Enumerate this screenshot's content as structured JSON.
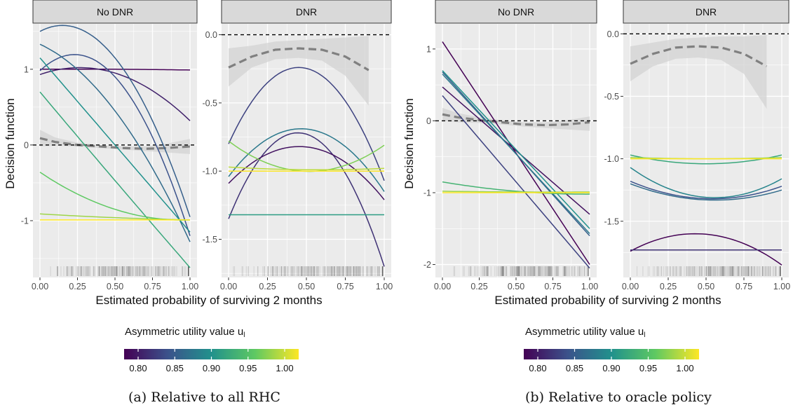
{
  "figure": {
    "captions": [
      "(a) Relative to all RHC",
      "(b) Relative to oracle policy"
    ],
    "legend": {
      "title": "Asymmetric utility value u",
      "title_sub": "l",
      "ticks": [
        "0.80",
        "0.85",
        "0.90",
        "0.95",
        "1.00"
      ],
      "range": [
        0.8,
        1.0
      ]
    },
    "xlabel": "Estimated probability of surviving 2 months",
    "ylabel": "Decision function"
  },
  "colors": {
    "panel_bg": "#ebebeb",
    "strip_bg": "#d9d9d9",
    "grid": "#ffffff",
    "ribbon": "#d3d3d3",
    "smooth": "#808080",
    "reference": "#000000",
    "viridis": [
      "#440154",
      "#3b528b",
      "#21918c",
      "#5ec962",
      "#fde725"
    ]
  },
  "chart_data": [
    {
      "type": "line",
      "figure": "a",
      "facet": "No DNR",
      "xlim": [
        0,
        1
      ],
      "ylim": [
        -1.75,
        1.6
      ],
      "xticks": [
        "0.00",
        "0.25",
        "0.50",
        "0.75",
        "1.00"
      ],
      "yticks": [
        {
          "v": 1,
          "label": "1"
        },
        {
          "v": 0,
          "label": "0"
        },
        {
          "v": -1,
          "label": "-1"
        }
      ],
      "reference_y": 0,
      "smooth": {
        "x": [
          0,
          0.1,
          0.25,
          0.4,
          0.55,
          0.7,
          0.85,
          1.0
        ],
        "y": [
          0.09,
          0.04,
          0.0,
          -0.02,
          -0.04,
          -0.05,
          -0.04,
          -0.02
        ],
        "lo": [
          -0.02,
          -0.01,
          -0.02,
          -0.04,
          -0.06,
          -0.08,
          -0.1,
          -0.12
        ],
        "hi": [
          0.2,
          0.1,
          0.03,
          0.0,
          -0.02,
          -0.02,
          0.02,
          0.08
        ]
      },
      "series": [
        {
          "u": 0.8,
          "x": [
            0,
            0.5,
            1
          ],
          "y": [
            1.0,
            1.0,
            0.99
          ]
        },
        {
          "u": 0.82,
          "x": [
            0,
            0.5,
            1
          ],
          "y": [
            0.93,
            0.95,
            0.32
          ]
        },
        {
          "u": 0.86,
          "x": [
            0,
            0.5,
            1
          ],
          "y": [
            1.5,
            1.15,
            -0.95
          ]
        },
        {
          "u": 0.85,
          "x": [
            0,
            0.5,
            1
          ],
          "y": [
            0.98,
            0.9,
            -1.2
          ]
        },
        {
          "u": 0.87,
          "x": [
            0,
            0.5,
            1
          ],
          "y": [
            1.33,
            0.45,
            -1.28
          ]
        },
        {
          "u": 0.9,
          "x": [
            0,
            0.5,
            1
          ],
          "y": [
            1.15,
            0.0,
            -1.15
          ]
        },
        {
          "u": 0.92,
          "x": [
            0,
            0.5,
            1
          ],
          "y": [
            0.7,
            -0.47,
            -1.62
          ]
        },
        {
          "u": 0.95,
          "x": [
            0,
            0.5,
            1
          ],
          "y": [
            -0.36,
            -0.85,
            -0.99
          ]
        },
        {
          "u": 0.97,
          "x": [
            0,
            0.5,
            1
          ],
          "y": [
            -0.91,
            -0.96,
            -0.99
          ]
        },
        {
          "u": 1.0,
          "x": [
            0,
            0.5,
            1
          ],
          "y": [
            -0.99,
            -0.99,
            -0.99
          ]
        }
      ]
    },
    {
      "type": "line",
      "figure": "a",
      "facet": "DNR",
      "xlim": [
        0,
        1
      ],
      "ylim": [
        -1.78,
        0.08
      ],
      "xticks": [
        "0.00",
        "0.25",
        "0.50",
        "0.75",
        "1.00"
      ],
      "yticks": [
        {
          "v": 0,
          "label": "0.0"
        },
        {
          "v": -0.5,
          "label": "-0.5"
        },
        {
          "v": -1,
          "label": "-1.0"
        },
        {
          "v": -1.5,
          "label": "-1.5"
        }
      ],
      "reference_y": 0,
      "smooth": {
        "x": [
          0,
          0.15,
          0.3,
          0.45,
          0.6,
          0.75,
          0.9
        ],
        "y": [
          -0.24,
          -0.16,
          -0.11,
          -0.1,
          -0.11,
          -0.16,
          -0.26
        ],
        "lo": [
          -0.38,
          -0.24,
          -0.18,
          -0.17,
          -0.19,
          -0.3,
          -0.52
        ],
        "hi": [
          -0.1,
          -0.08,
          -0.05,
          -0.04,
          -0.03,
          -0.02,
          -0.01
        ]
      },
      "series": [
        {
          "u": 0.84,
          "x": [
            0,
            0.45,
            1
          ],
          "y": [
            -0.8,
            -0.24,
            -1.07
          ]
        },
        {
          "u": 0.88,
          "x": [
            0,
            0.45,
            1
          ],
          "y": [
            -1.04,
            -0.69,
            -1.15
          ]
        },
        {
          "u": 0.83,
          "x": [
            0,
            0.46,
            1
          ],
          "y": [
            -1.35,
            -0.72,
            -1.7
          ]
        },
        {
          "u": 0.81,
          "x": [
            0,
            0.46,
            1
          ],
          "y": [
            -1.09,
            -0.82,
            -1.21
          ]
        },
        {
          "u": 0.91,
          "x": [
            0,
            0.5,
            1
          ],
          "y": [
            -1.32,
            -1.32,
            -1.32
          ]
        },
        {
          "u": 0.96,
          "x": [
            0,
            0.47,
            1
          ],
          "y": [
            -0.78,
            -1.0,
            -0.81
          ]
        },
        {
          "u": 0.98,
          "x": [
            0,
            0.5,
            1
          ],
          "y": [
            -0.97,
            -0.99,
            -0.98
          ]
        },
        {
          "u": 1.0,
          "x": [
            0,
            0.5,
            1
          ],
          "y": [
            -1.0,
            -1.0,
            -1.0
          ]
        }
      ]
    },
    {
      "type": "line",
      "figure": "b",
      "facet": "No DNR",
      "xlim": [
        0,
        1
      ],
      "ylim": [
        -2.18,
        1.35
      ],
      "xticks": [
        "0.00",
        "0.25",
        "0.50",
        "0.75",
        "1.00"
      ],
      "yticks": [
        {
          "v": 1,
          "label": "1"
        },
        {
          "v": 0,
          "label": "0"
        },
        {
          "v": -1,
          "label": "-1"
        },
        {
          "v": -2,
          "label": "-2"
        }
      ],
      "reference_y": 0,
      "smooth": {
        "x": [
          0,
          0.1,
          0.25,
          0.4,
          0.55,
          0.7,
          0.85,
          1.0
        ],
        "y": [
          0.09,
          0.05,
          0.01,
          -0.02,
          -0.05,
          -0.06,
          -0.05,
          -0.02
        ],
        "lo": [
          0.0,
          -0.02,
          -0.03,
          -0.05,
          -0.08,
          -0.1,
          -0.12,
          -0.14
        ],
        "hi": [
          0.18,
          0.11,
          0.05,
          0.01,
          -0.02,
          -0.02,
          0.01,
          0.06
        ]
      },
      "series": [
        {
          "u": 0.8,
          "x": [
            0,
            1
          ],
          "y": [
            1.1,
            -2.0
          ]
        },
        {
          "u": 0.81,
          "x": [
            0,
            1
          ],
          "y": [
            0.47,
            -1.3
          ]
        },
        {
          "u": 0.84,
          "x": [
            0,
            1
          ],
          "y": [
            0.35,
            -2.05
          ]
        },
        {
          "u": 0.86,
          "x": [
            0,
            1
          ],
          "y": [
            0.68,
            -1.6
          ]
        },
        {
          "u": 0.88,
          "x": [
            0,
            1
          ],
          "y": [
            0.65,
            -1.57
          ]
        },
        {
          "u": 0.9,
          "x": [
            0,
            1
          ],
          "y": [
            0.7,
            -1.5
          ]
        },
        {
          "u": 0.93,
          "x": [
            0,
            0.5,
            1
          ],
          "y": [
            -0.85,
            -0.98,
            -1.02
          ]
        },
        {
          "u": 0.97,
          "x": [
            0,
            0.5,
            1
          ],
          "y": [
            -0.98,
            -0.99,
            -0.99
          ]
        },
        {
          "u": 1.0,
          "x": [
            0,
            0.5,
            1
          ],
          "y": [
            -1.0,
            -1.0,
            -1.0
          ]
        }
      ]
    },
    {
      "type": "line",
      "figure": "b",
      "facet": "DNR",
      "xlim": [
        0,
        1
      ],
      "ylim": [
        -1.95,
        0.08
      ],
      "xticks": [
        "0.00",
        "0.25",
        "0.50",
        "0.75",
        "1.00"
      ],
      "yticks": [
        {
          "v": 0,
          "label": "0.0"
        },
        {
          "v": -0.5,
          "label": "-0.5"
        },
        {
          "v": -1,
          "label": "-1.0"
        },
        {
          "v": -1.5,
          "label": "-1.5"
        }
      ],
      "reference_y": 0,
      "smooth": {
        "x": [
          0,
          0.15,
          0.3,
          0.45,
          0.6,
          0.75,
          0.9
        ],
        "y": [
          -0.24,
          -0.16,
          -0.11,
          -0.1,
          -0.11,
          -0.16,
          -0.26
        ],
        "lo": [
          -0.38,
          -0.26,
          -0.2,
          -0.19,
          -0.21,
          -0.32,
          -0.6
        ],
        "hi": [
          -0.1,
          -0.07,
          -0.04,
          -0.03,
          -0.02,
          -0.02,
          -0.01
        ]
      },
      "series": [
        {
          "u": 0.8,
          "x": [
            0,
            0.43,
            1
          ],
          "y": [
            -1.74,
            -1.6,
            -1.85
          ]
        },
        {
          "u": 0.83,
          "x": [
            0,
            0.5,
            1
          ],
          "y": [
            -1.73,
            -1.73,
            -1.73
          ]
        },
        {
          "u": 0.85,
          "x": [
            0,
            0.52,
            1
          ],
          "y": [
            -1.18,
            -1.32,
            -1.22
          ]
        },
        {
          "u": 0.87,
          "x": [
            0,
            0.52,
            1
          ],
          "y": [
            -1.2,
            -1.33,
            -1.25
          ]
        },
        {
          "u": 0.89,
          "x": [
            0,
            0.52,
            1
          ],
          "y": [
            -1.07,
            -1.31,
            -1.16
          ]
        },
        {
          "u": 0.92,
          "x": [
            0,
            0.5,
            1
          ],
          "y": [
            -0.97,
            -1.04,
            -0.97
          ]
        },
        {
          "u": 0.97,
          "x": [
            0,
            0.5,
            1
          ],
          "y": [
            -0.99,
            -1.0,
            -0.99
          ]
        },
        {
          "u": 1.0,
          "x": [
            0,
            0.5,
            1
          ],
          "y": [
            -1.0,
            -1.0,
            -1.0
          ]
        }
      ]
    }
  ]
}
